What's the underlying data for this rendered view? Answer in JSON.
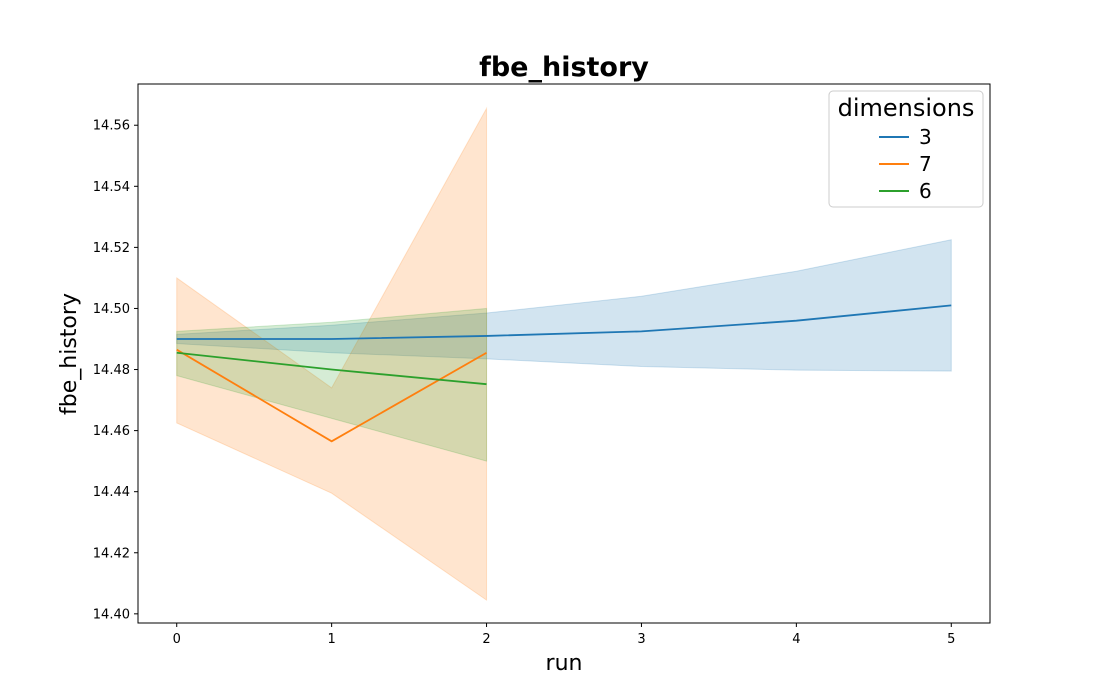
{
  "chart_data": {
    "type": "line",
    "title": "fbe_history",
    "xlabel": "run",
    "ylabel": "fbe_history",
    "xlim": [
      -0.25,
      5.25
    ],
    "ylim": [
      14.397,
      14.5735
    ],
    "xticks": [
      0,
      1,
      2,
      3,
      4,
      5
    ],
    "xtick_labels": [
      "0",
      "1",
      "2",
      "3",
      "4",
      "5"
    ],
    "yticks": [
      14.4,
      14.42,
      14.44,
      14.46,
      14.48,
      14.5,
      14.52,
      14.54,
      14.56
    ],
    "ytick_labels": [
      "14.40",
      "14.42",
      "14.44",
      "14.46",
      "14.48",
      "14.50",
      "14.52",
      "14.54",
      "14.56"
    ],
    "grid": false,
    "legend": {
      "title": "dimensions",
      "placement": "top-right"
    },
    "series": [
      {
        "name": "3",
        "color": "#1f77b4",
        "x": [
          0,
          1,
          2,
          3,
          4,
          5
        ],
        "y": [
          14.49,
          14.49,
          14.491,
          14.4925,
          14.496,
          14.501
        ],
        "ci_lower": [
          14.4885,
          14.4855,
          14.4835,
          14.481,
          14.4798,
          14.4795
        ],
        "ci_upper": [
          14.4915,
          14.4945,
          14.4985,
          14.504,
          14.5122,
          14.5225
        ]
      },
      {
        "name": "7",
        "color": "#ff7f0e",
        "x": [
          0,
          1,
          2
        ],
        "y": [
          14.4865,
          14.4565,
          14.4855
        ],
        "ci_lower": [
          14.4625,
          14.4395,
          14.4045
        ],
        "ci_upper": [
          14.51,
          14.474,
          14.5655
        ]
      },
      {
        "name": "6",
        "color": "#2ca02c",
        "x": [
          0,
          1,
          2
        ],
        "y": [
          14.4855,
          14.48,
          14.4752
        ],
        "ci_lower": [
          14.478,
          14.464,
          14.45
        ],
        "ci_upper": [
          14.4925,
          14.4955,
          14.5
        ]
      }
    ]
  }
}
